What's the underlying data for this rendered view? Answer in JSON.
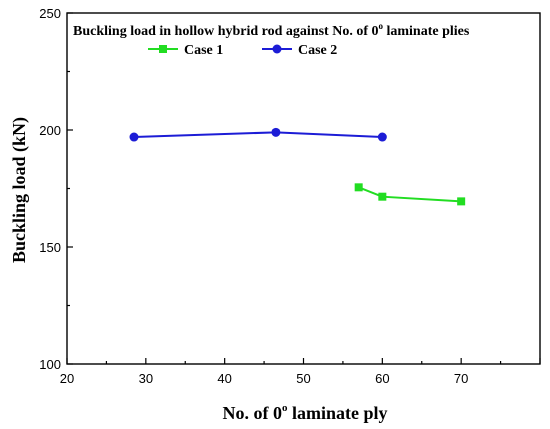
{
  "chart_data": {
    "type": "line",
    "title": "Buckling load in hollow hybrid rod against No. of 0",
    "title_superscript": "o",
    "title_suffix": " laminate plies",
    "xlabel": "No. of 0",
    "xlabel_superscript": "o",
    "xlabel_suffix": " laminate ply",
    "ylabel": "Buckling load (kN)",
    "xlim": [
      20,
      80
    ],
    "ylim": [
      100,
      250
    ],
    "x_ticks": [
      20,
      30,
      40,
      50,
      60,
      70
    ],
    "y_ticks": [
      100,
      150,
      200,
      250
    ],
    "grid": false,
    "legend_position": "top-center",
    "series": [
      {
        "name": "Case 1",
        "color": "#22dd22",
        "marker": "square",
        "x": [
          57,
          60,
          70
        ],
        "y": [
          175.5,
          171.5,
          169.5
        ]
      },
      {
        "name": "Case 2",
        "color": "#1c1cd6",
        "marker": "circle",
        "x": [
          28.5,
          46.5,
          60
        ],
        "y": [
          197,
          199,
          197
        ]
      }
    ]
  }
}
